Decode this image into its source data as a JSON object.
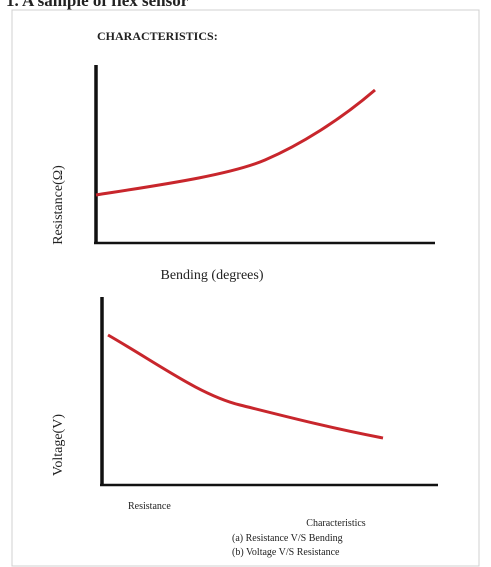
{
  "caption": "1. A sample of flex sensor",
  "heading": "CHARACTERISTICS:",
  "chart_a": {
    "y_label": "Resistance(Ω)",
    "x_label": "Bending (degrees)"
  },
  "chart_b": {
    "y_label": "Voltage(V)",
    "x_label": "Resistance"
  },
  "legend": {
    "title": "Characteristics",
    "items": [
      "(a) Resistance V/S Bending",
      "(b) Voltage V/S Resistance"
    ]
  }
}
